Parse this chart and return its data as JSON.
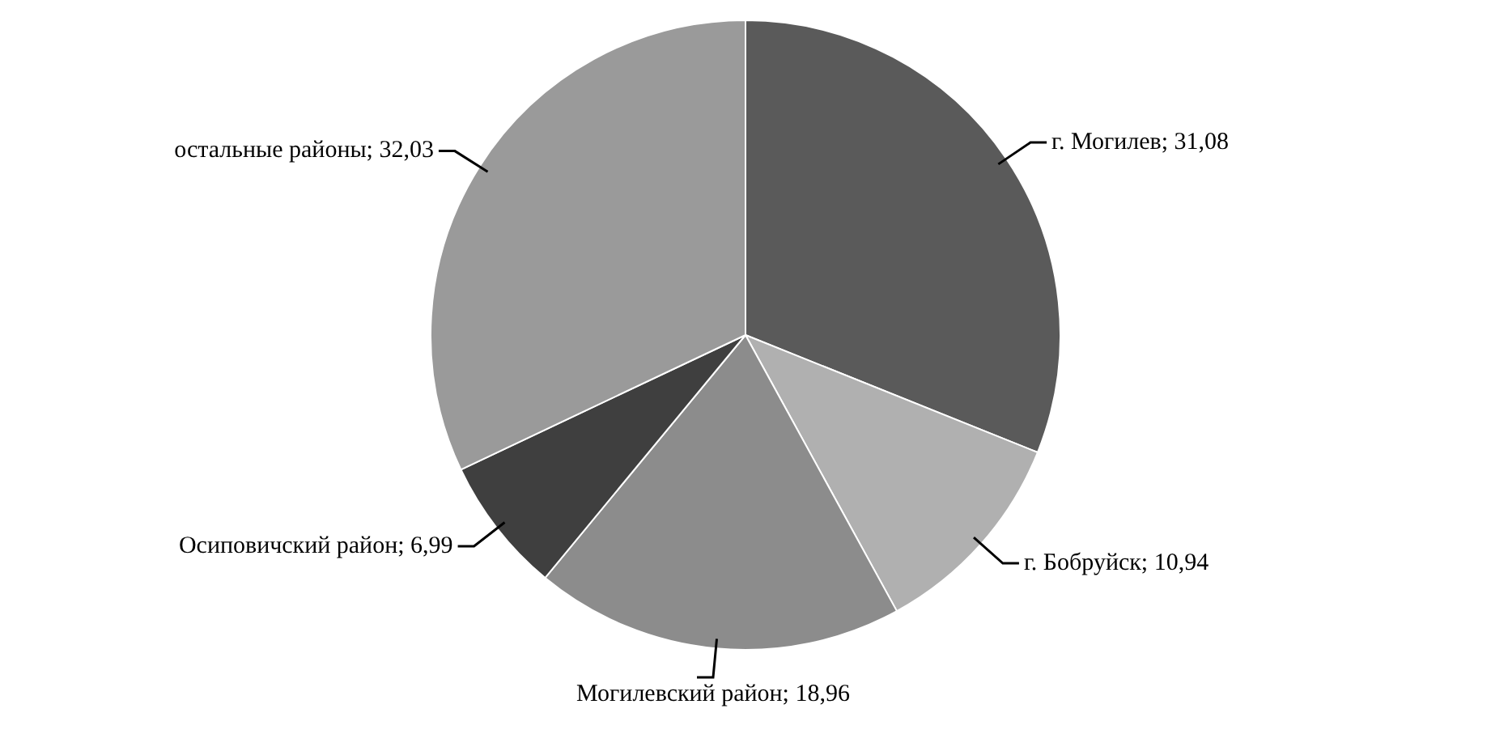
{
  "chart_data": {
    "type": "pie",
    "categories": [
      "г. Могилев",
      "г. Бобруйск",
      "Могилевский район",
      "Осиповичский район",
      "остальные районы"
    ],
    "values": [
      31.08,
      10.94,
      18.96,
      6.99,
      32.03
    ],
    "value_labels": [
      "31,08",
      "10,94",
      "18,96",
      "6,99",
      "32,03"
    ],
    "colors": [
      "#5a5a5a",
      "#b0b0b0",
      "#8c8c8c",
      "#3f3f3f",
      "#9a9a9a"
    ],
    "legend": false
  }
}
